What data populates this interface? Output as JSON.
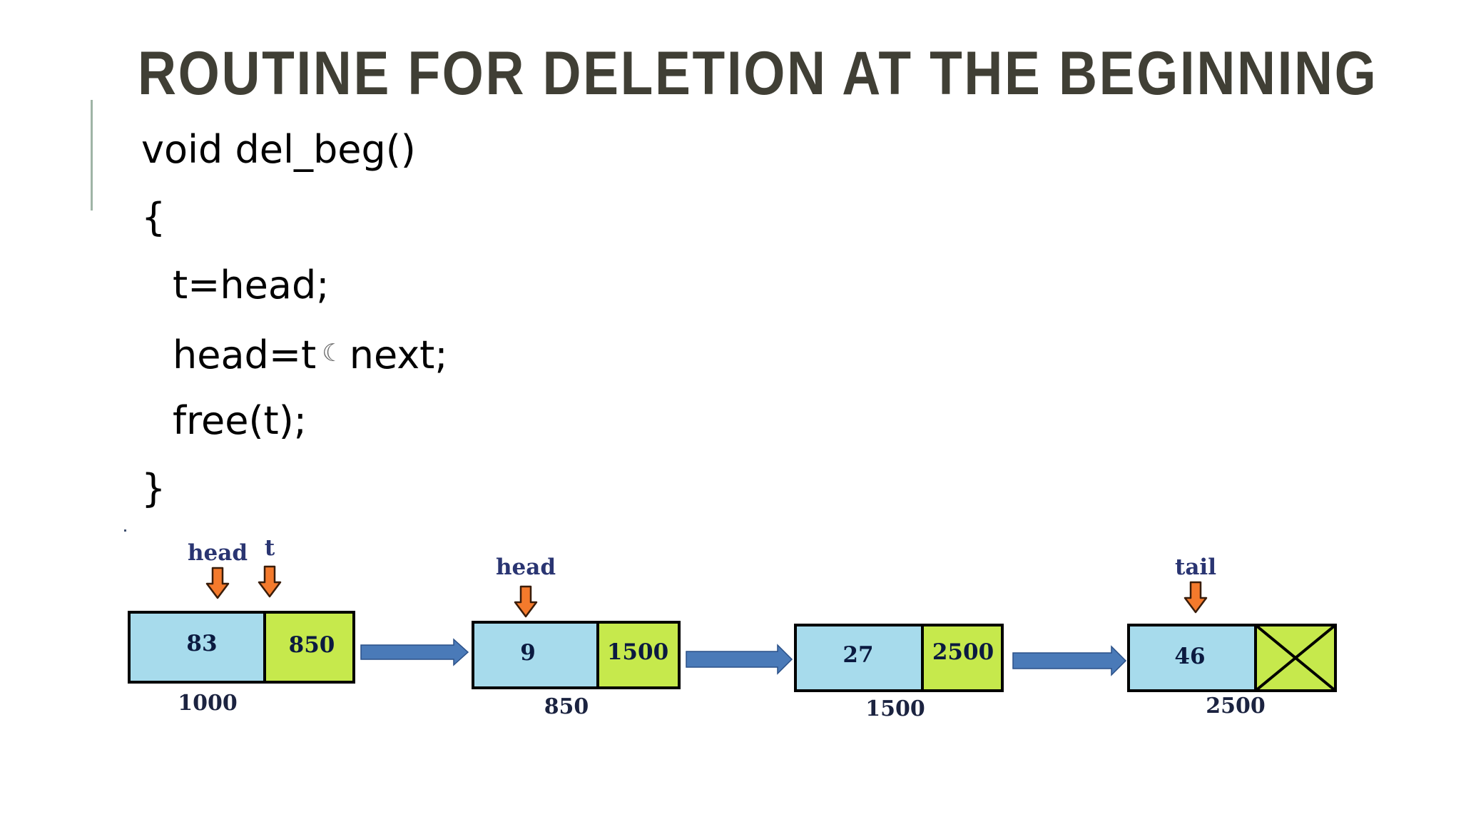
{
  "slide": {
    "title": "ROUTINE FOR DELETION AT THE BEGINNING"
  },
  "code": {
    "lines": [
      "void del_beg()",
      "{",
      "t=head;",
      "head=t",
      "next;",
      "free(t);",
      "}"
    ],
    "arrow_symbol": "☾"
  },
  "diagram": {
    "colors": {
      "data_cell": "#a7dbec",
      "next_cell": "#c6e94c",
      "link_arrow": "#4a7ab8",
      "pointer_arrow": "#f47a2c",
      "border": "#000000"
    },
    "nodes": [
      {
        "data": "83",
        "next": "850",
        "address": "1000",
        "null_next": false
      },
      {
        "data": "9",
        "next": "1500",
        "address": "850",
        "null_next": false
      },
      {
        "data": "27",
        "next": "2500",
        "address": "1500",
        "null_next": false
      },
      {
        "data": "46",
        "next": "",
        "address": "2500",
        "null_next": true
      }
    ],
    "pointers": [
      {
        "label": "head",
        "node": 0
      },
      {
        "label": "t",
        "node": 0
      },
      {
        "label": "head",
        "node": 1
      },
      {
        "label": "tail",
        "node": 3
      }
    ]
  }
}
